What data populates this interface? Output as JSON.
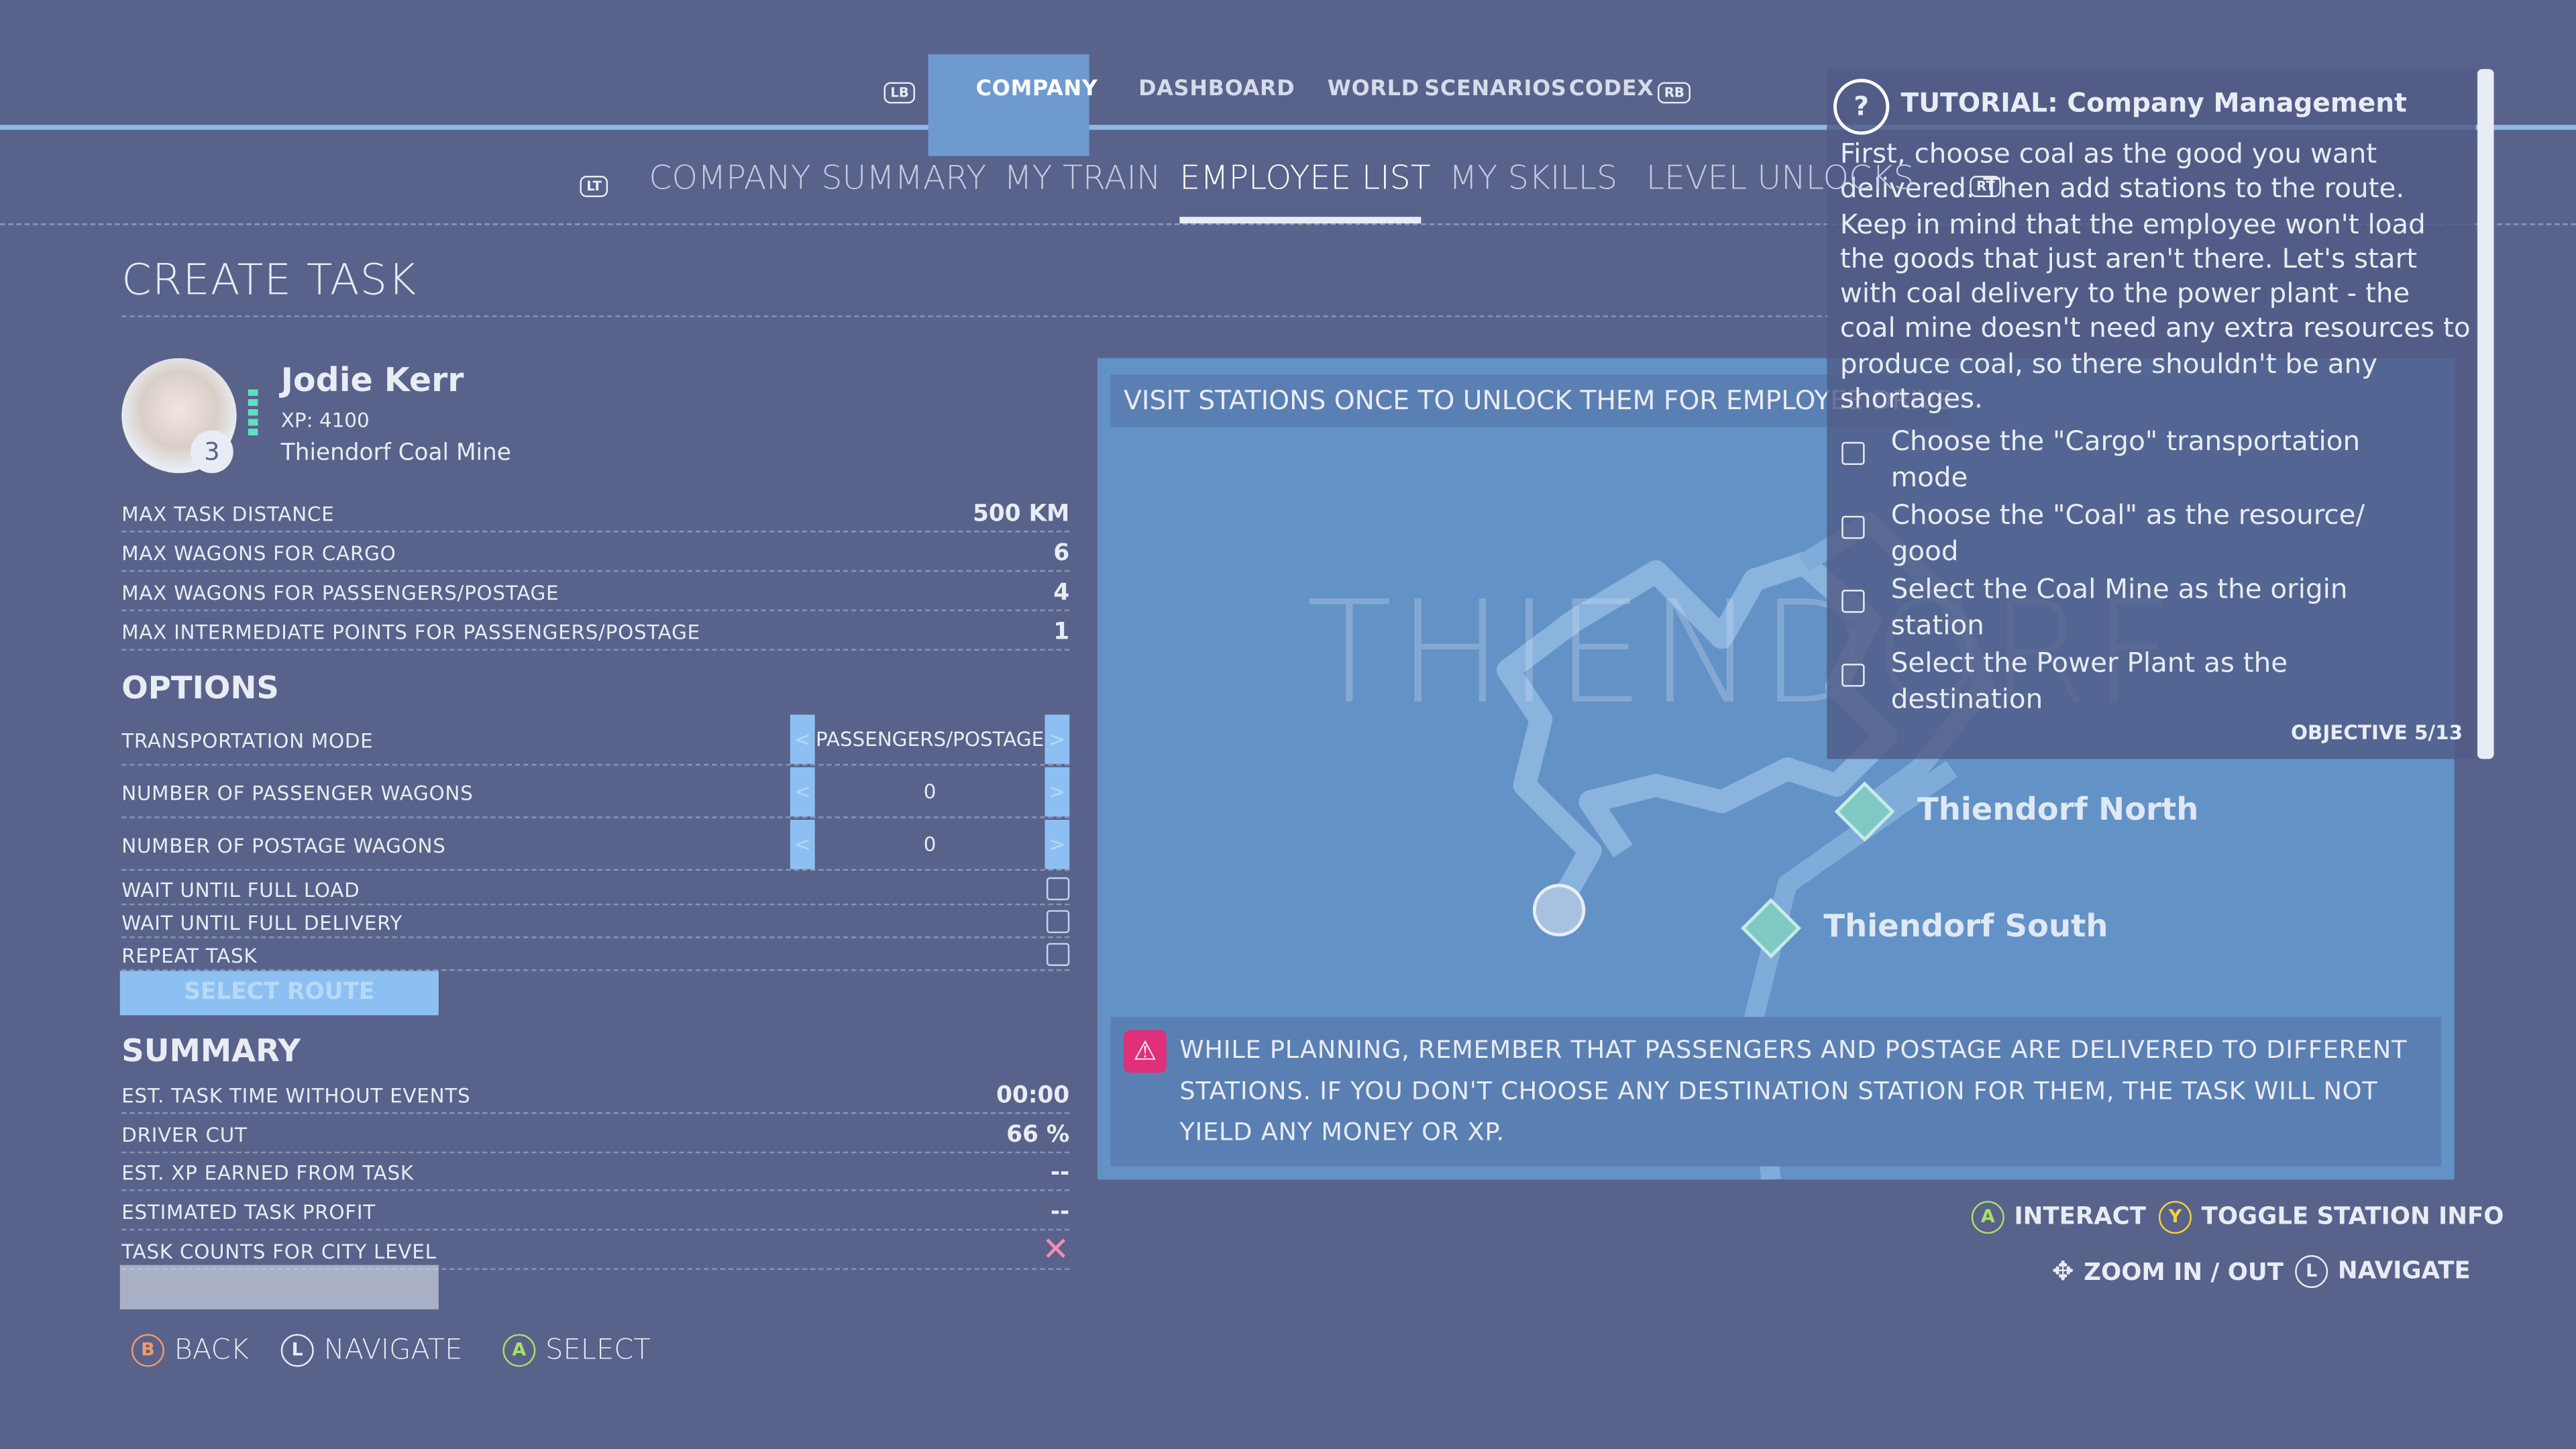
{
  "nav": {
    "left_button": "LB",
    "right_button": "RB",
    "tabs": [
      "COMPANY",
      "DASHBOARD",
      "WORLD",
      "SCENARIOS",
      "CODEX"
    ]
  },
  "subnav": {
    "left_button": "LT",
    "right_button": "RT",
    "tabs": [
      "COMPANY SUMMARY",
      "MY TRAIN",
      "EMPLOYEE LIST",
      "MY SKILLS",
      "LEVEL UNLOCKS"
    ]
  },
  "heading": "CREATE TASK",
  "employee": {
    "name": "Jodie Kerr",
    "level": "3",
    "xp": "XP: 4100",
    "station": "Thiendorf Coal Mine"
  },
  "limits": [
    {
      "label": "MAX TASK DISTANCE",
      "value": "500 KM"
    },
    {
      "label": "MAX WAGONS FOR CARGO",
      "value": "6"
    },
    {
      "label": "MAX WAGONS FOR PASSENGERS/POSTAGE",
      "value": "4"
    },
    {
      "label": "MAX INTERMEDIATE POINTS FOR PASSENGERS/POSTAGE",
      "value": "1"
    }
  ],
  "options": {
    "title": "OPTIONS",
    "selectors": [
      {
        "label": "TRANSPORTATION MODE",
        "value": "PASSENGERS/POSTAGE"
      },
      {
        "label": "NUMBER OF PASSENGER WAGONS",
        "value": "0"
      },
      {
        "label": "NUMBER OF POSTAGE WAGONS",
        "value": "0"
      }
    ],
    "checkboxes": [
      "WAIT UNTIL FULL LOAD",
      "WAIT UNTIL FULL DELIVERY",
      "REPEAT TASK"
    ],
    "button": "SELECT ROUTE"
  },
  "summary": {
    "title": "SUMMARY",
    "rows": [
      {
        "label": "EST. TASK TIME WITHOUT EVENTS",
        "value": "00:00"
      },
      {
        "label": "DRIVER CUT",
        "value": "66 %"
      },
      {
        "label": "EST. XP EARNED FROM TASK",
        "value": "--"
      },
      {
        "label": "ESTIMATED TASK PROFIT",
        "value": "--"
      },
      {
        "label": "TASK COUNTS FOR CITY LEVEL"
      }
    ]
  },
  "map": {
    "banner": "VISIT STATIONS ONCE TO UNLOCK THEM FOR EMPLOYEE DRIVERS",
    "region": "THIENDORF",
    "stations": [
      "Thiendorf North",
      "Thiendorf South"
    ],
    "warning": "WHILE PLANNING, REMEMBER THAT PASSENGERS AND POSTAGE ARE DELIVERED TO DIFFERENT STATIONS. IF YOU DON'T CHOOSE ANY DESTINATION STATION FOR THEM, THE TASK WILL NOT YIELD ANY MONEY OR XP."
  },
  "map_hints": [
    {
      "button": "A",
      "label": "INTERACT"
    },
    {
      "button": "Y",
      "label": "TOGGLE STATION INFO"
    },
    {
      "label": "ZOOM IN / OUT"
    },
    {
      "button": "L",
      "label": "NAVIGATE"
    }
  ],
  "tutorial": {
    "title": "TUTORIAL: Company Management",
    "text": "First, choose coal as the good you want delivered. Then add stations to the route. Keep in mind that the employee won't load the goods that just aren't there. Let's start with coal delivery to the power plant - the coal mine doesn't need any extra resources to produce coal, so there shouldn't be any shortages.",
    "objectives": [
      "Choose the \"Cargo\" transportation mode",
      "Choose the \"Coal\" as the resource/ good",
      "Select the Coal Mine as the origin station",
      "Select the Power Plant as the destination"
    ],
    "progress": "OBJECTIVE 5/13"
  },
  "footer": [
    {
      "button": "B",
      "label": "BACK"
    },
    {
      "button": "L",
      "label": "NAVIGATE"
    },
    {
      "button": "A",
      "label": "SELECT"
    }
  ]
}
